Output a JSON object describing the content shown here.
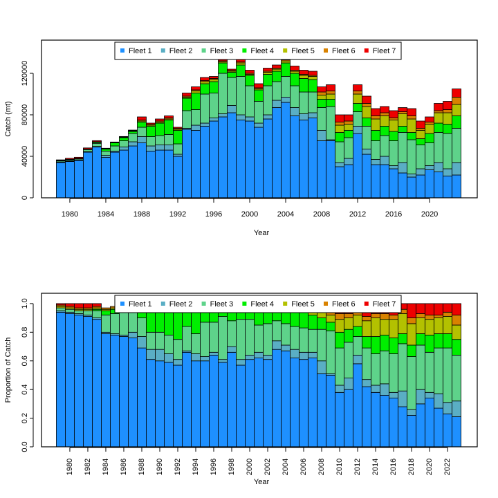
{
  "chart_data": [
    {
      "type": "stacked_bar",
      "y_label": "Catch (mt)",
      "x_label": "Year",
      "x": [
        1979,
        1980,
        1981,
        1982,
        1983,
        1984,
        1985,
        1986,
        1987,
        1988,
        1989,
        1990,
        1991,
        1992,
        1993,
        1994,
        1995,
        1996,
        1997,
        1998,
        1999,
        2000,
        2001,
        2002,
        2003,
        2004,
        2005,
        2006,
        2007,
        2008,
        2009,
        2010,
        2011,
        2012,
        2013,
        2014,
        2015,
        2016,
        2017,
        2018,
        2019,
        2020,
        2021,
        2022,
        2023
      ],
      "xlim": [
        1976.85,
        2025.3
      ],
      "xticks": [
        1980,
        1984,
        1988,
        1992,
        1996,
        2000,
        2004,
        2008,
        2012,
        2016,
        2020
      ],
      "ylim": [
        0,
        152000
      ],
      "yticks": [
        0,
        40000,
        80000,
        120000
      ],
      "legend": "top",
      "series": [
        {
          "name": "Fleet 1",
          "color": "#1e90ff",
          "values": [
            34000,
            35000,
            36000,
            44000,
            49000,
            39000,
            44000,
            46000,
            50000,
            53000,
            45000,
            46000,
            46000,
            40000,
            66000,
            65000,
            69000,
            74000,
            78000,
            82000,
            75000,
            74000,
            68000,
            76000,
            87000,
            92000,
            79000,
            75000,
            77000,
            55000,
            55000,
            30000,
            32000,
            62000,
            42000,
            32000,
            32000,
            28000,
            24000,
            20000,
            22000,
            27000,
            25000,
            21000,
            22000
          ]
        },
        {
          "name": "Fleet 2",
          "color": "#5aaec4",
          "values": [
            500,
            500,
            500,
            500,
            500,
            2000,
            1000,
            3000,
            4000,
            6000,
            5000,
            5000,
            5000,
            2000,
            1000,
            5000,
            3000,
            3000,
            3000,
            7000,
            5000,
            4000,
            4000,
            4000,
            7000,
            5000,
            8000,
            6000,
            5000,
            10000,
            1000,
            4000,
            6000,
            7000,
            5000,
            5000,
            8000,
            3000,
            10000,
            3000,
            6000,
            4000,
            9000,
            7000,
            12000
          ]
        },
        {
          "name": "Fleet 3",
          "color": "#5ed38a",
          "values": [
            1000,
            1000,
            1000,
            2000,
            3000,
            4000,
            5000,
            6000,
            8000,
            9000,
            9000,
            9000,
            10000,
            10000,
            17000,
            15000,
            28000,
            24000,
            39000,
            27000,
            37000,
            30000,
            21000,
            28000,
            18000,
            20000,
            21000,
            21000,
            20000,
            22000,
            32000,
            20000,
            20000,
            14000,
            22000,
            18000,
            20000,
            24000,
            29000,
            33000,
            23000,
            22000,
            29000,
            34000,
            33000
          ]
        },
        {
          "name": "Fleet 4",
          "color": "#00ee00",
          "values": [
            0,
            0,
            0,
            0,
            1000,
            2000,
            3000,
            3000,
            2000,
            5000,
            10000,
            12000,
            14000,
            13000,
            12000,
            16000,
            10000,
            11000,
            10000,
            5000,
            11000,
            10000,
            11000,
            11000,
            10000,
            13000,
            12000,
            13000,
            12000,
            8000,
            7000,
            9000,
            7000,
            8000,
            8000,
            10000,
            9000,
            9000,
            6000,
            7000,
            6000,
            9000,
            9000,
            9000,
            12000
          ]
        },
        {
          "name": "Fleet 5",
          "color": "#b3c100",
          "values": [
            300,
            300,
            300,
            300,
            300,
            500,
            500,
            500,
            500,
            1000,
            1000,
            1000,
            1000,
            1000,
            1000,
            2000,
            2000,
            2000,
            1000,
            1000,
            2000,
            1000,
            1000,
            2000,
            2000,
            2000,
            2000,
            3000,
            3000,
            4000,
            5000,
            7000,
            6000,
            9000,
            11000,
            11000,
            10000,
            11000,
            12000,
            13000,
            8000,
            9000,
            10000,
            11000,
            11000
          ]
        },
        {
          "name": "Fleet 6",
          "color": "#d98200",
          "values": [
            300,
            300,
            300,
            300,
            300,
            300,
            300,
            300,
            300,
            1000,
            1000,
            1000,
            1000,
            1000,
            1000,
            1000,
            1000,
            1000,
            1000,
            1000,
            1000,
            1000,
            1000,
            1000,
            1000,
            1000,
            1000,
            1000,
            1000,
            3000,
            3000,
            3000,
            3000,
            3000,
            3000,
            3000,
            3000,
            2000,
            2000,
            3000,
            2000,
            2000,
            2000,
            3000,
            7000
          ]
        },
        {
          "name": "Fleet 7",
          "color": "#ee0000",
          "values": [
            500,
            1000,
            1000,
            1000,
            1000,
            0,
            0,
            300,
            500,
            3000,
            1000,
            2000,
            2000,
            1000,
            3000,
            3000,
            3000,
            2000,
            3000,
            1000,
            3000,
            3000,
            4000,
            3000,
            3000,
            1000,
            4000,
            4000,
            4000,
            5000,
            6000,
            7000,
            6000,
            6000,
            7000,
            7000,
            6000,
            7000,
            4000,
            7000,
            7000,
            5000,
            7000,
            8000,
            8000
          ]
        }
      ]
    },
    {
      "type": "stacked_bar",
      "y_label": "Proportion of Catch",
      "x_label": "Year",
      "x": [
        1979,
        1980,
        1981,
        1982,
        1983,
        1984,
        1985,
        1986,
        1987,
        1988,
        1989,
        1990,
        1991,
        1992,
        1993,
        1994,
        1995,
        1996,
        1997,
        1998,
        1999,
        2000,
        2001,
        2002,
        2003,
        2004,
        2005,
        2006,
        2007,
        2008,
        2009,
        2010,
        2011,
        2012,
        2013,
        2014,
        2015,
        2016,
        2017,
        2018,
        2019,
        2020,
        2021,
        2022,
        2023
      ],
      "xlim": [
        1976.85,
        2025.3
      ],
      "xticks": [
        1980,
        1982,
        1984,
        1986,
        1988,
        1990,
        1992,
        1994,
        1996,
        1998,
        2000,
        2002,
        2004,
        2006,
        2008,
        2010,
        2012,
        2014,
        2016,
        2018,
        2020,
        2022
      ],
      "ylim": [
        0,
        1.072
      ],
      "yticks": [
        {
          "value": 0,
          "label": "0.0"
        },
        0.2,
        0.4,
        0.6,
        0.8,
        {
          "value": 1,
          "label": "1.0"
        }
      ],
      "legend": "top",
      "series": [
        {
          "name": "Fleet 1",
          "color": "#1e90ff",
          "values": [
            0.94,
            0.93,
            0.92,
            0.91,
            0.89,
            0.79,
            0.78,
            0.77,
            0.76,
            0.69,
            0.61,
            0.6,
            0.59,
            0.57,
            0.66,
            0.6,
            0.6,
            0.64,
            0.59,
            0.66,
            0.57,
            0.61,
            0.62,
            0.61,
            0.68,
            0.67,
            0.62,
            0.61,
            0.62,
            0.51,
            0.5,
            0.38,
            0.4,
            0.58,
            0.42,
            0.38,
            0.36,
            0.34,
            0.28,
            0.22,
            0.3,
            0.34,
            0.27,
            0.23,
            0.21
          ]
        },
        {
          "name": "Fleet 2",
          "color": "#5aaec4",
          "values": [
            0.01,
            0.01,
            0.01,
            0.01,
            0.01,
            0.01,
            0.01,
            0.01,
            0.04,
            0.08,
            0.07,
            0.08,
            0.06,
            0.04,
            0.01,
            0.05,
            0.03,
            0.02,
            0.02,
            0.04,
            0.04,
            0.03,
            0.04,
            0.03,
            0.06,
            0.04,
            0.06,
            0.05,
            0.04,
            0.09,
            0.01,
            0.05,
            0.08,
            0.06,
            0.05,
            0.05,
            0.08,
            0.04,
            0.11,
            0.04,
            0.1,
            0.04,
            0.1,
            0.08,
            0.11
          ]
        },
        {
          "name": "Fleet 3",
          "color": "#5ed38a",
          "values": [
            0.02,
            0.02,
            0.02,
            0.03,
            0.05,
            0.12,
            0.14,
            0.16,
            0.15,
            0.13,
            0.12,
            0.12,
            0.13,
            0.14,
            0.17,
            0.14,
            0.24,
            0.21,
            0.3,
            0.18,
            0.28,
            0.25,
            0.19,
            0.22,
            0.14,
            0.15,
            0.16,
            0.17,
            0.16,
            0.22,
            0.3,
            0.26,
            0.25,
            0.13,
            0.22,
            0.22,
            0.23,
            0.27,
            0.33,
            0.37,
            0.31,
            0.28,
            0.32,
            0.38,
            0.32
          ]
        },
        {
          "name": "Fleet 4",
          "color": "#00ee00",
          "values": [
            0,
            0,
            0,
            0,
            0.01,
            0.03,
            0.03,
            0.02,
            0.01,
            0.07,
            0.15,
            0.15,
            0.17,
            0.21,
            0.12,
            0.15,
            0.09,
            0.09,
            0.07,
            0.08,
            0.07,
            0.08,
            0.1,
            0.09,
            0.08,
            0.1,
            0.1,
            0.11,
            0.1,
            0.08,
            0.06,
            0.11,
            0.09,
            0.07,
            0.08,
            0.12,
            0.11,
            0.11,
            0.07,
            0.08,
            0.08,
            0.12,
            0.1,
            0.1,
            0.11
          ]
        },
        {
          "name": "Fleet 5",
          "color": "#b3c100",
          "values": [
            0.01,
            0.01,
            0.01,
            0.01,
            0.01,
            0.01,
            0.01,
            0.01,
            0.01,
            0.01,
            0.01,
            0.01,
            0.01,
            0.01,
            0.01,
            0.02,
            0.02,
            0.02,
            0.01,
            0.01,
            0.02,
            0.01,
            0.01,
            0.02,
            0.02,
            0.02,
            0.02,
            0.03,
            0.03,
            0.04,
            0.05,
            0.09,
            0.08,
            0.08,
            0.11,
            0.13,
            0.11,
            0.13,
            0.14,
            0.15,
            0.11,
            0.11,
            0.11,
            0.12,
            0.1
          ]
        },
        {
          "name": "Fleet 6",
          "color": "#d98200",
          "values": [
            0.01,
            0.01,
            0.01,
            0.01,
            0.01,
            0.01,
            0.01,
            0.01,
            0.01,
            0.01,
            0.01,
            0.01,
            0.01,
            0.01,
            0.01,
            0.01,
            0.01,
            0.01,
            0.01,
            0.01,
            0.01,
            0.01,
            0.01,
            0.01,
            0.01,
            0.01,
            0.01,
            0.01,
            0.01,
            0.03,
            0.03,
            0.04,
            0.03,
            0.03,
            0.03,
            0.03,
            0.04,
            0.03,
            0.03,
            0.04,
            0.03,
            0.03,
            0.02,
            0.03,
            0.07
          ]
        },
        {
          "name": "Fleet 7",
          "color": "#ee0000",
          "values": [
            0.01,
            0.02,
            0.03,
            0.03,
            0.02,
            0,
            0,
            0.01,
            0.01,
            0.01,
            0.02,
            0.02,
            0.02,
            0.02,
            0.02,
            0.03,
            0.01,
            0.01,
            0.01,
            0.02,
            0.01,
            0.01,
            0.03,
            0.02,
            0.01,
            0.01,
            0.03,
            0.02,
            0.04,
            0.03,
            0.05,
            0.07,
            0.07,
            0.05,
            0.09,
            0.07,
            0.07,
            0.08,
            0.04,
            0.1,
            0.07,
            0.08,
            0.08,
            0.06,
            0.08
          ]
        }
      ]
    }
  ]
}
